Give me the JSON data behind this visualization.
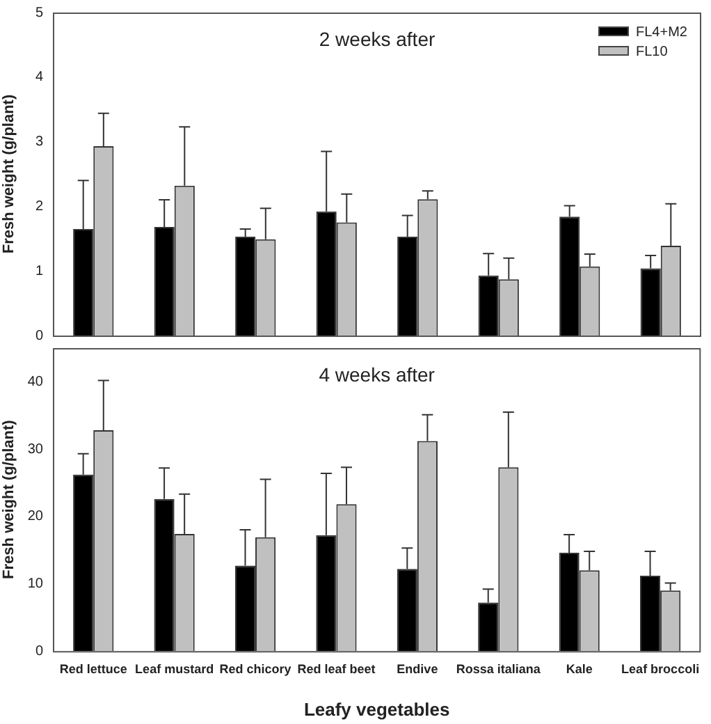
{
  "chart_data": [
    {
      "type": "bar",
      "title": "2 weeks after",
      "ylabel": "Fresh weight (g/plant)",
      "categories": [
        null,
        null,
        null,
        null,
        null,
        null,
        null,
        null
      ],
      "series": [
        {
          "name": "FL4+M2",
          "color": "#000000",
          "values": [
            1.65,
            1.68,
            1.53,
            1.92,
            1.53,
            0.93,
            1.84,
            1.04
          ],
          "errors": [
            [
              1.65,
              2.4
            ],
            [
              1.68,
              2.1
            ],
            [
              1.53,
              1.65
            ],
            [
              1.92,
              2.85
            ],
            [
              1.53,
              1.86
            ],
            [
              0.93,
              1.27
            ],
            [
              1.84,
              2.01
            ],
            [
              1.04,
              1.24
            ]
          ]
        },
        {
          "name": "FL10",
          "color": "#c0c0c0",
          "values": [
            2.93,
            2.32,
            1.49,
            1.75,
            2.11,
            0.87,
            1.07,
            1.39
          ],
          "errors": [
            [
              2.93,
              3.44
            ],
            [
              2.32,
              3.23
            ],
            [
              1.49,
              1.97
            ],
            [
              1.75,
              2.19
            ],
            [
              2.11,
              2.24
            ],
            [
              0.87,
              1.2
            ],
            [
              1.07,
              1.26
            ],
            [
              1.39,
              2.04
            ]
          ]
        }
      ],
      "ylim": [
        0,
        5
      ],
      "yticks": [
        0,
        1,
        2,
        3,
        4,
        5
      ],
      "grid": false,
      "legend": "top right",
      "tick_labels": "y"
    },
    {
      "type": "bar",
      "title": "4 weeks after",
      "ylabel": "Fresh weight (g/plant)",
      "xlabel": "Leafy vegetables",
      "categories": [
        "Red lettuce",
        "Leaf mustard",
        "Red chicory",
        "Red leaf beet",
        "Endive",
        "Rossa italiana",
        "Kale",
        "Leaf broccoli"
      ],
      "series": [
        {
          "color": "#000000",
          "values": [
            26.2,
            22.6,
            12.7,
            17.2,
            12.2,
            7.2,
            14.6,
            11.2
          ],
          "errors": [
            [
              26.2,
              29.3
            ],
            [
              22.6,
              27.2
            ],
            [
              12.7,
              18.0
            ],
            [
              17.2,
              26.4
            ],
            [
              12.2,
              15.3
            ],
            [
              7.2,
              9.2
            ],
            [
              14.6,
              17.3
            ],
            [
              11.2,
              14.8
            ]
          ]
        },
        {
          "color": "#c0c0c0",
          "values": [
            32.8,
            17.4,
            16.9,
            21.8,
            31.2,
            27.3,
            12.0,
            9.0
          ],
          "errors": [
            [
              32.8,
              40.2
            ],
            [
              17.4,
              23.3
            ],
            [
              16.9,
              25.5
            ],
            [
              21.8,
              27.3
            ],
            [
              31.2,
              35.1
            ],
            [
              27.3,
              35.5
            ],
            [
              12.0,
              14.8
            ],
            [
              9.0,
              10.1
            ]
          ]
        }
      ],
      "ylim": [
        0,
        45
      ],
      "yticks": [
        0,
        10,
        20,
        30,
        40
      ],
      "grid": false,
      "legend": false
    }
  ]
}
